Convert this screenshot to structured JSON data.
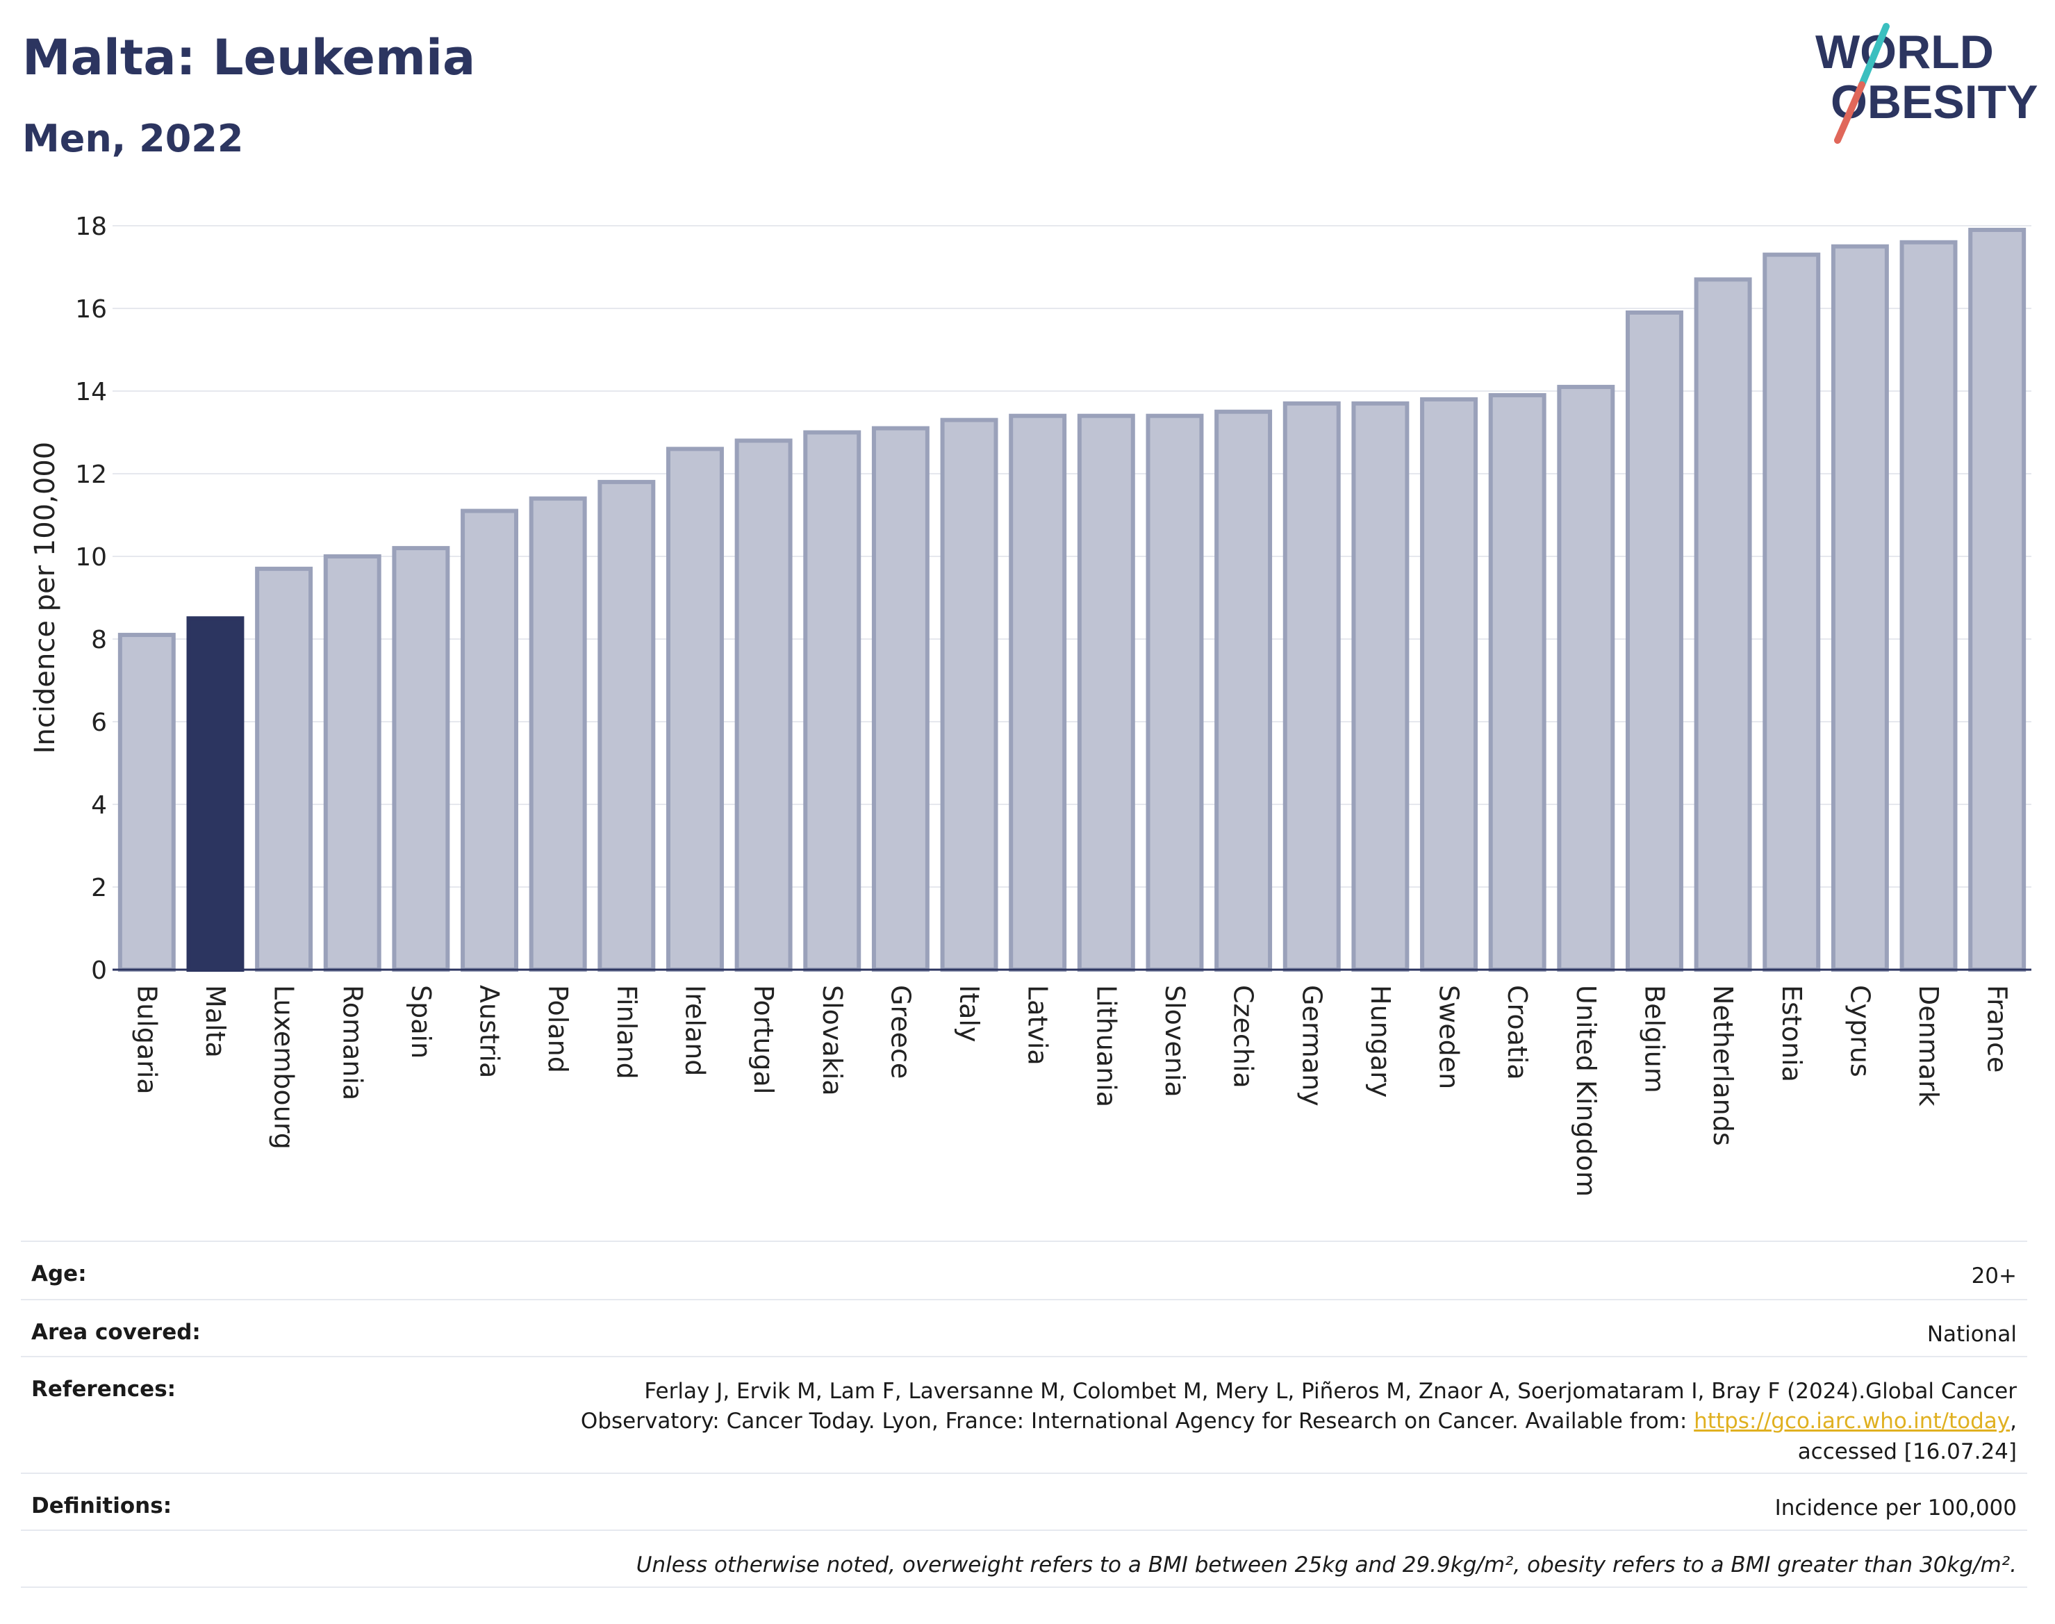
{
  "header": {
    "title": "Malta: Leukemia",
    "subtitle": "Men, 2022",
    "logo_top": "WORLD",
    "logo_bottom": "OBESITY"
  },
  "chart_data": {
    "type": "bar",
    "title": "Malta: Leukemia",
    "subtitle": "Men, 2022",
    "ylabel": "Incidence per 100,000",
    "xlabel": "",
    "ylim": [
      0,
      18
    ],
    "yticks": [
      0,
      2,
      4,
      6,
      8,
      10,
      12,
      14,
      16,
      18
    ],
    "grid": true,
    "highlight": "Malta",
    "colors": {
      "highlight": "#2c3560",
      "bar": "#bfc3d3",
      "bar_border": "#9aa1ba"
    },
    "categories": [
      "Bulgaria",
      "Malta",
      "Luxembourg",
      "Romania",
      "Spain",
      "Austria",
      "Poland",
      "Finland",
      "Ireland",
      "Portugal",
      "Slovakia",
      "Greece",
      "Italy",
      "Latvia",
      "Lithuania",
      "Slovenia",
      "Czechia",
      "Germany",
      "Hungary",
      "Sweden",
      "Croatia",
      "United Kingdom",
      "Belgium",
      "Netherlands",
      "Estonia",
      "Cyprus",
      "Denmark",
      "France"
    ],
    "values": [
      8.1,
      8.5,
      9.7,
      10.0,
      10.2,
      11.1,
      11.4,
      11.8,
      12.6,
      12.8,
      13.0,
      13.1,
      13.3,
      13.4,
      13.4,
      13.4,
      13.5,
      13.7,
      13.7,
      13.8,
      13.9,
      14.1,
      15.9,
      16.7,
      17.3,
      17.5,
      17.6,
      17.9
    ]
  },
  "meta": {
    "age_label": "Age:",
    "age_value": "20+",
    "area_label": "Area covered:",
    "area_value": "National",
    "references_label": "References:",
    "references_line1": "Ferlay J, Ervik M, Lam F, Laversanne M, Colombet M, Mery L, Piñeros M, Znaor A, Soerjomataram I, Bray F (2024).Global Cancer",
    "references_line2": "Observatory: Cancer Today. Lyon, France: International Agency for Research on Cancer. Available from: ",
    "references_link": "https://gco.iarc.who.int/today",
    "references_line3": "accessed [16.07.24]",
    "definitions_label": "Definitions:",
    "definitions_value": "Incidence per 100,000",
    "note": "Unless otherwise noted, overweight refers to a BMI between 25kg and 29.9kg/m², obesity refers to a BMI greater than 30kg/m²."
  }
}
